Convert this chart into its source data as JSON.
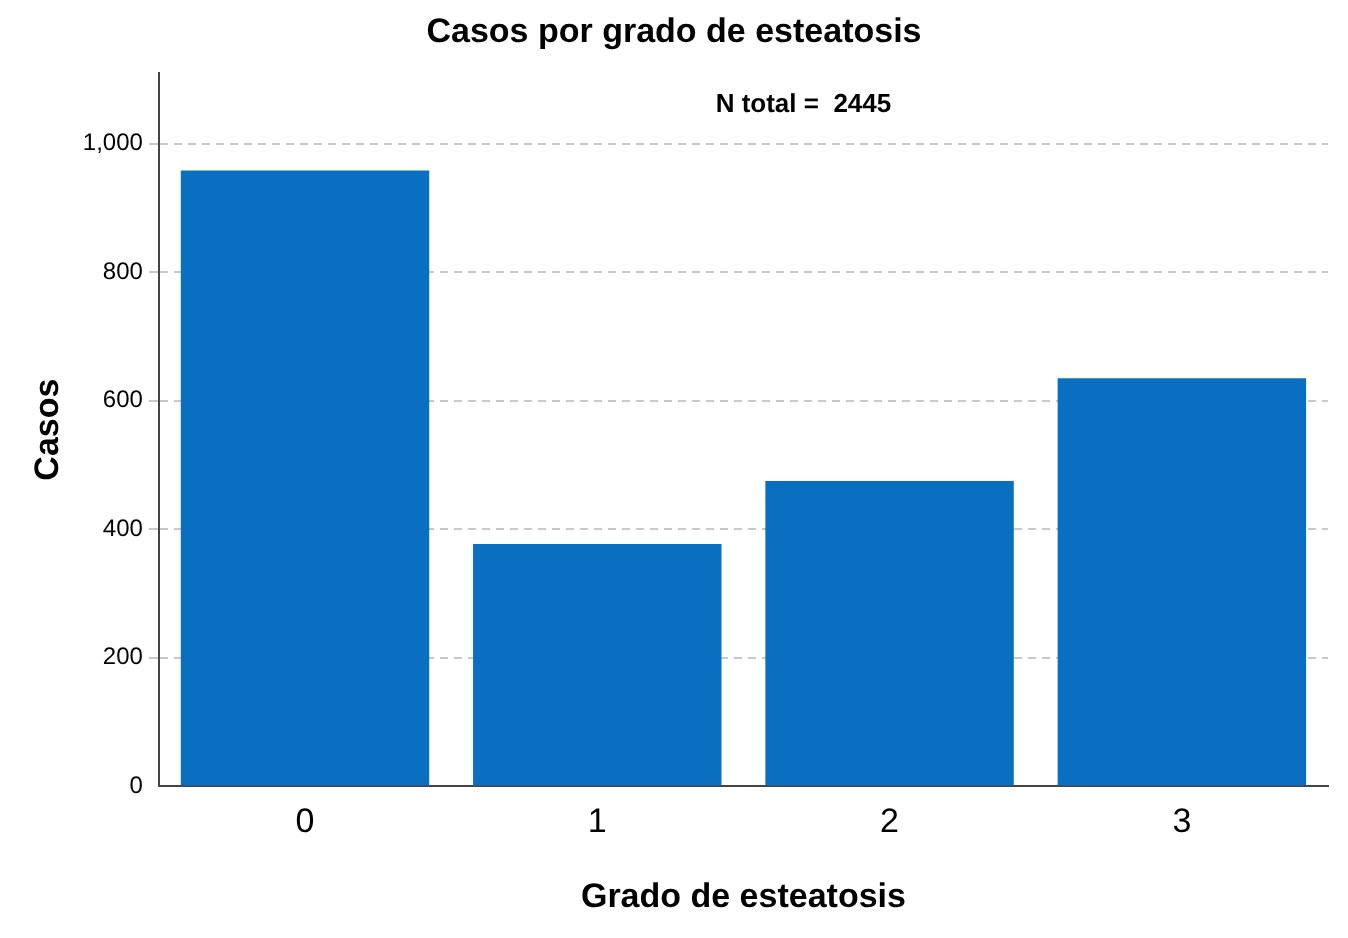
{
  "chart_data": {
    "type": "bar",
    "title": "Casos por grado de esteatosis",
    "xlabel": "Grado de esteatosis",
    "ylabel": "Casos",
    "categories": [
      "0",
      "1",
      "2",
      "3"
    ],
    "values": [
      958,
      377,
      475,
      635
    ],
    "color": "#0b6fc1",
    "ylim": [
      0,
      1110
    ],
    "yticks": [
      0,
      200,
      400,
      600,
      800,
      {
        "value": 1000,
        "label": "1,000"
      }
    ],
    "grid": "y",
    "legend": false,
    "annotations": [
      "N total =  2445"
    ]
  }
}
